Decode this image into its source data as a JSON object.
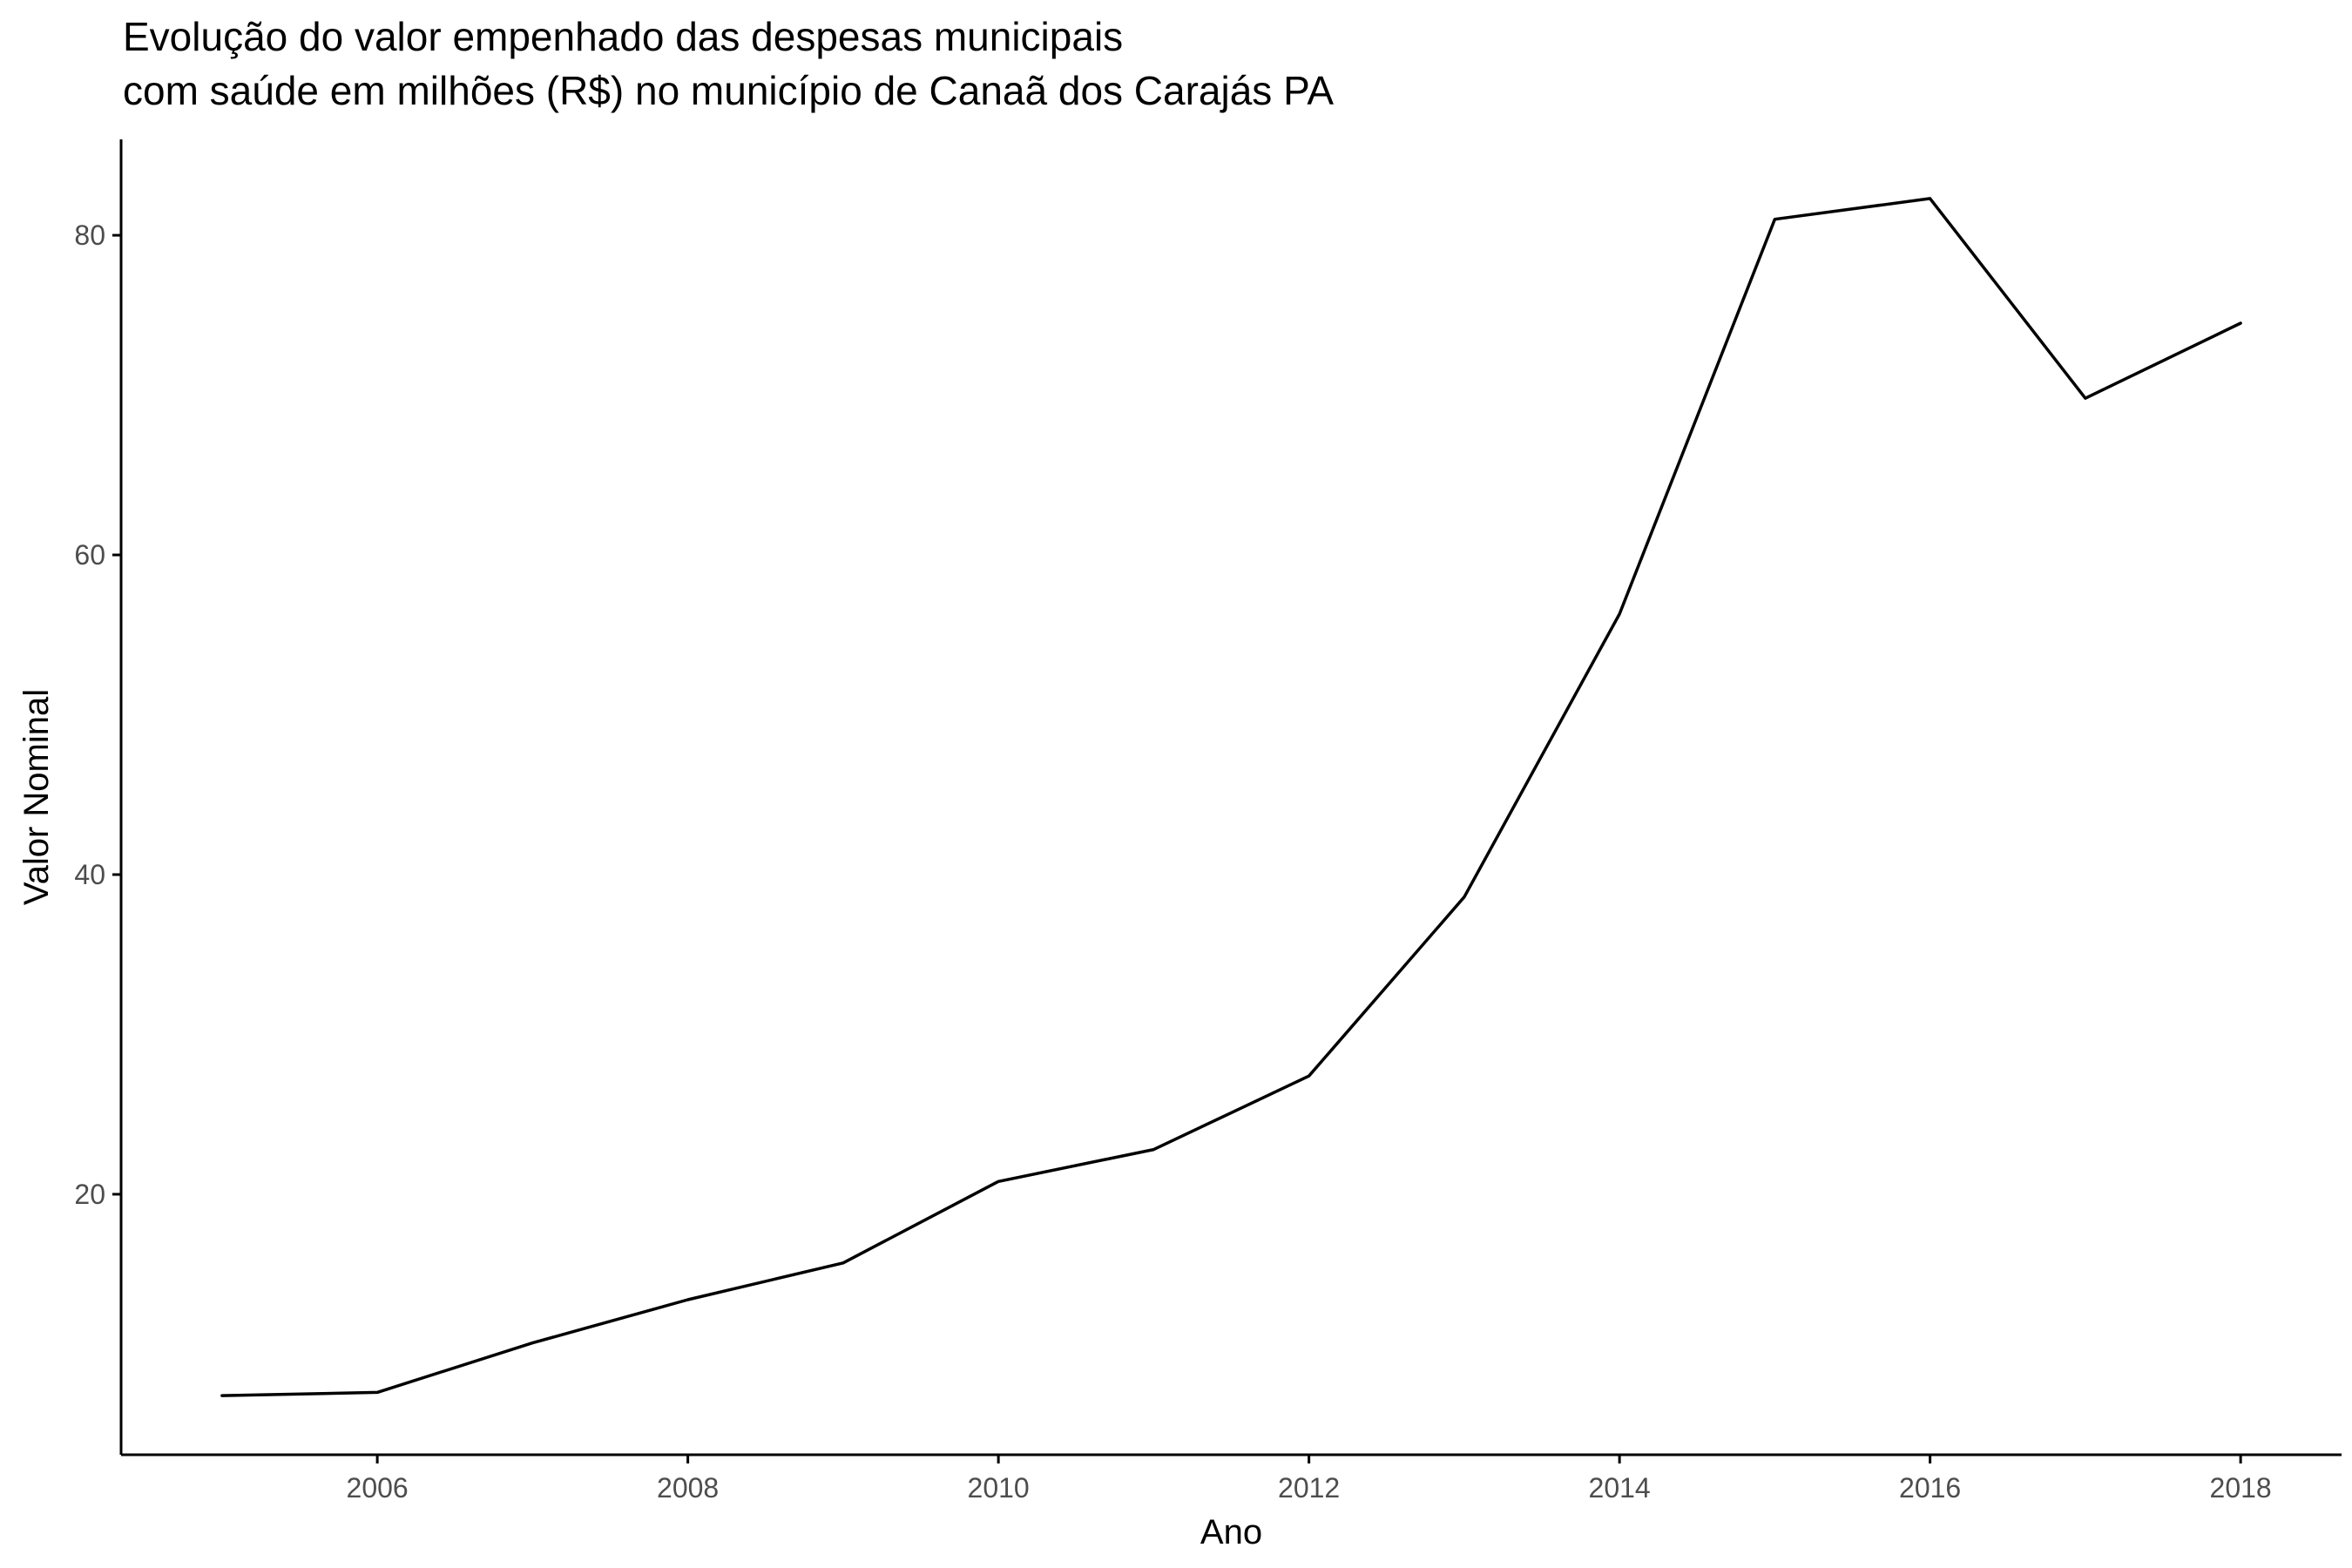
{
  "chart_data": {
    "type": "line",
    "title_lines": [
      "Evolução do valor empenhado das despesas municipais",
      "com saúde em milhões (R$) no município de Canaã dos Carajás PA"
    ],
    "xlabel": "Ano",
    "ylabel": "Valor Nominal",
    "x": [
      2005,
      2006,
      2007,
      2008,
      2009,
      2010,
      2011,
      2012,
      2013,
      2014,
      2015,
      2016,
      2017,
      2018
    ],
    "series": [
      {
        "values": [
          7.4,
          7.6,
          10.7,
          13.4,
          15.7,
          20.8,
          22.8,
          27.4,
          38.6,
          56.3,
          81.0,
          82.3,
          69.8,
          74.5
        ]
      }
    ],
    "xticks": [
      2006,
      2008,
      2010,
      2012,
      2014,
      2016,
      2018
    ],
    "yticks": [
      20,
      40,
      60,
      80
    ],
    "xlim": [
      2004.35,
      2018.65
    ],
    "ylim": [
      3.7,
      86.0
    ],
    "grid": false,
    "line_color": "#000000",
    "axis_color": "#000000",
    "tick_label_color": "#4d4d4d"
  }
}
